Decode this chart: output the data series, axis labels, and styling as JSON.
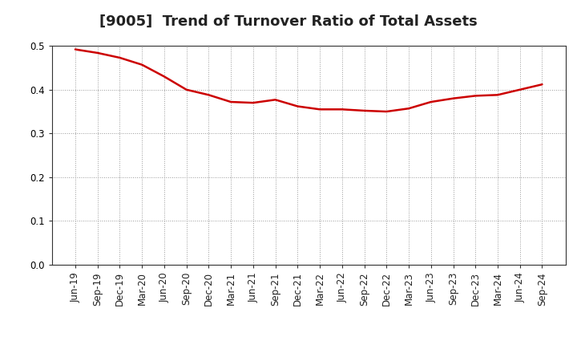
{
  "title": "[9005]  Trend of Turnover Ratio of Total Assets",
  "line_color": "#cc0000",
  "background_color": "#ffffff",
  "grid_color": "#999999",
  "ylim": [
    0.0,
    0.5
  ],
  "yticks": [
    0.0,
    0.1,
    0.2,
    0.3,
    0.4,
    0.5
  ],
  "x_labels": [
    "Jun-19",
    "Sep-19",
    "Dec-19",
    "Mar-20",
    "Jun-20",
    "Sep-20",
    "Dec-20",
    "Mar-21",
    "Jun-21",
    "Sep-21",
    "Dec-21",
    "Mar-22",
    "Jun-22",
    "Sep-22",
    "Dec-22",
    "Mar-23",
    "Jun-23",
    "Sep-23",
    "Dec-23",
    "Mar-24",
    "Jun-24",
    "Sep-24"
  ],
  "values": [
    0.492,
    0.484,
    0.473,
    0.457,
    0.43,
    0.4,
    0.388,
    0.372,
    0.37,
    0.377,
    0.362,
    0.355,
    0.355,
    0.352,
    0.35,
    0.357,
    0.372,
    0.38,
    0.386,
    0.388,
    0.4,
    0.412
  ],
  "title_fontsize": 13,
  "tick_fontsize": 8.5,
  "line_width": 1.8
}
